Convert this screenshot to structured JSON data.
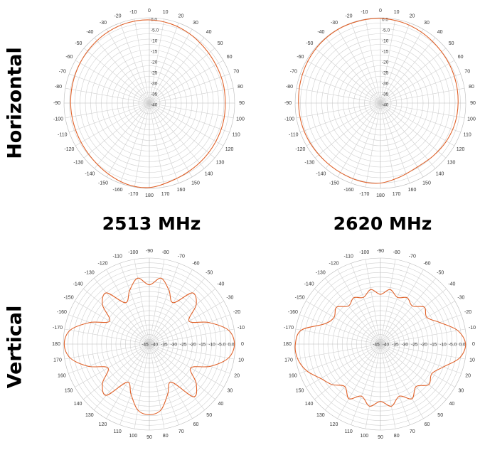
{
  "row_labels": {
    "horizontal": "Horizontal",
    "vertical": "Vertical"
  },
  "frequencies": [
    "2513 MHz",
    "2620 MHz"
  ],
  "colors": {
    "trace": "#e0622a",
    "grid": "#d0d0d0",
    "grid_dark": "#b8b8b8"
  },
  "chart_data": [
    {
      "type": "polar",
      "plane": "Horizontal",
      "frequency": "2513 MHz",
      "orientation": "clockwise, 0 at top",
      "angle_labels": [
        "0",
        "10",
        "20",
        "30",
        "40",
        "50",
        "60",
        "70",
        "80",
        "90",
        "100",
        "110",
        "120",
        "130",
        "140",
        "150",
        "160",
        "170",
        "180",
        "-170",
        "-160",
        "-150",
        "-140",
        "-130",
        "-120",
        "-110",
        "-100",
        "-90",
        "-80",
        "-70",
        "-60",
        "-50",
        "-40",
        "-30",
        "-20",
        "-10"
      ],
      "radial_labels": [
        "0.0",
        "-5.0",
        "-10",
        "-15",
        "-20",
        "-25",
        "-30",
        "-35",
        "-40"
      ],
      "rlim": [
        -40,
        0
      ],
      "angles_deg": [
        0,
        15,
        30,
        45,
        60,
        75,
        90,
        105,
        120,
        135,
        150,
        165,
        180,
        195,
        210,
        225,
        240,
        255,
        270,
        285,
        300,
        315,
        330,
        345
      ],
      "gain_db": [
        -1,
        -1.5,
        -2.4,
        -3.4,
        -4,
        -4.2,
        -4.4,
        -4.2,
        -4,
        -3.6,
        -3,
        -2,
        -0.4,
        -0.5,
        -1.6,
        -2.6,
        -3.1,
        -3.2,
        -3.1,
        -2.9,
        -2.5,
        -2,
        -1.4,
        -1
      ]
    },
    {
      "type": "polar",
      "plane": "Horizontal",
      "frequency": "2620 MHz",
      "orientation": "clockwise, 0 at top",
      "angle_labels": [
        "0",
        "10",
        "20",
        "30",
        "40",
        "50",
        "60",
        "70",
        "80",
        "90",
        "100",
        "110",
        "120",
        "130",
        "140",
        "150",
        "160",
        "170",
        "180",
        "-170",
        "-160",
        "-150",
        "-140",
        "-130",
        "-120",
        "-110",
        "-100",
        "-90",
        "-80",
        "-70",
        "-60",
        "-50",
        "-40",
        "-30",
        "-20",
        "-10"
      ],
      "radial_labels": [
        "0.0",
        "-5.0",
        "-10",
        "-15",
        "-20",
        "-25",
        "-30",
        "-35",
        "-40"
      ],
      "rlim": [
        -40,
        0
      ],
      "angles_deg": [
        0,
        15,
        30,
        45,
        60,
        75,
        90,
        105,
        120,
        135,
        150,
        165,
        180,
        195,
        210,
        225,
        240,
        255,
        270,
        285,
        300,
        315,
        330,
        345
      ],
      "gain_db": [
        -0.3,
        -0.8,
        -1.6,
        -2.4,
        -2.9,
        -3.3,
        -3.6,
        -3.8,
        -4.3,
        -5,
        -5.4,
        -4.2,
        -2.5,
        -2.2,
        -2.4,
        -2.4,
        -2.1,
        -1.8,
        -1.6,
        -1.2,
        -0.7,
        -0.3,
        -0.1,
        -0.2
      ]
    },
    {
      "type": "polar",
      "plane": "Vertical",
      "frequency": "2513 MHz",
      "orientation": "0 at right, clockwise, 90 at bottom",
      "angle_labels": [
        "0",
        "10",
        "20",
        "30",
        "40",
        "50",
        "60",
        "70",
        "80",
        "90",
        "100",
        "110",
        "120",
        "130",
        "140",
        "150",
        "160",
        "170",
        "180",
        "-170",
        "-160",
        "-150",
        "-140",
        "-130",
        "-120",
        "-110",
        "-100",
        "-90",
        "-80",
        "-70",
        "-60",
        "-50",
        "-40",
        "-30",
        "-20",
        "-10"
      ],
      "radial_labels": [
        "0.0",
        "-5.0",
        "-10",
        "-15",
        "-20",
        "-25",
        "-30",
        "-35",
        "-40",
        "-45"
      ],
      "rlim": [
        -45,
        0
      ],
      "angles_deg": [
        0,
        10,
        20,
        30,
        40,
        50,
        60,
        70,
        80,
        90,
        100,
        110,
        120,
        130,
        140,
        150,
        160,
        170,
        180,
        190,
        200,
        210,
        220,
        230,
        240,
        250,
        260,
        270,
        280,
        290,
        300,
        310,
        320,
        330,
        340,
        350
      ],
      "gain_db": [
        -0.5,
        -3,
        -11,
        -20,
        -13,
        -9,
        -22,
        -17,
        -10,
        -8,
        -10,
        -17,
        -22,
        -10,
        -13,
        -20,
        -11,
        -3,
        -0.5,
        -3,
        -12,
        -21,
        -13,
        -10,
        -20,
        -15,
        -10,
        -14,
        -10,
        -15,
        -20,
        -10,
        -13,
        -21,
        -12,
        -3
      ]
    },
    {
      "type": "polar",
      "plane": "Vertical",
      "frequency": "2620 MHz",
      "orientation": "0 at right, clockwise, 90 at bottom",
      "angle_labels": [
        "0",
        "10",
        "20",
        "30",
        "40",
        "50",
        "60",
        "70",
        "80",
        "90",
        "100",
        "110",
        "120",
        "130",
        "140",
        "150",
        "160",
        "170",
        "180",
        "-170",
        "-160",
        "-150",
        "-140",
        "-130",
        "-120",
        "-110",
        "-100",
        "-90",
        "-80",
        "-70",
        "-60",
        "-50",
        "-40",
        "-30",
        "-20",
        "-10"
      ],
      "radial_labels": [
        "0.0",
        "-5.0",
        "-10",
        "-15",
        "-20",
        "-25",
        "-30",
        "-35",
        "-40",
        "-45"
      ],
      "rlim": [
        -45,
        0
      ],
      "angles_deg": [
        0,
        10,
        20,
        30,
        40,
        50,
        60,
        70,
        80,
        90,
        100,
        110,
        120,
        130,
        140,
        150,
        160,
        170,
        180,
        190,
        200,
        210,
        220,
        230,
        240,
        250,
        260,
        270,
        280,
        290,
        300,
        310,
        320,
        330,
        340,
        350
      ],
      "gain_db": [
        -0.5,
        -3,
        -10,
        -14,
        -12,
        -16,
        -12,
        -16,
        -12,
        -15,
        -12,
        -16,
        -12,
        -16,
        -12,
        -9,
        -4,
        -1,
        -0.5,
        -3,
        -14,
        -17,
        -15,
        -19,
        -17,
        -19,
        -16,
        -19,
        -16,
        -19,
        -17,
        -19,
        -15,
        -17,
        -12,
        -4
      ]
    }
  ]
}
